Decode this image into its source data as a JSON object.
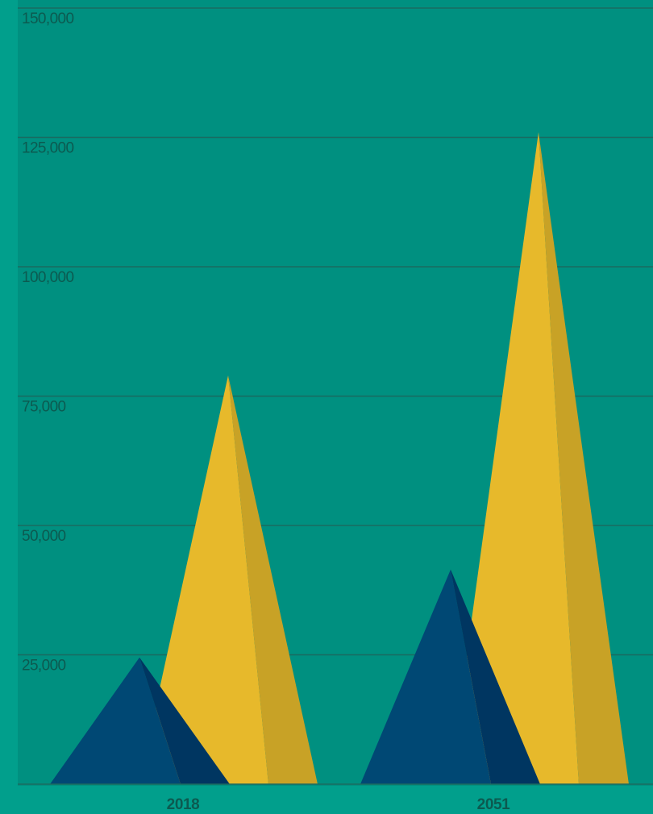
{
  "chart_data": {
    "type": "bar",
    "style": "triangle-pyramid",
    "categories": [
      "2018",
      "2051"
    ],
    "series": [
      {
        "values": [
          79000,
          126000
        ],
        "color": "#e7b92b",
        "shade": "#c8a226"
      },
      {
        "values": [
          24500,
          41500
        ],
        "color": "#004874",
        "shade": "#003661"
      }
    ],
    "ylim": [
      0,
      150000
    ],
    "yticks": [
      {
        "value": 25000,
        "label": "25,000"
      },
      {
        "value": 50000,
        "label": "50,000"
      },
      {
        "value": 75000,
        "label": "75,000"
      },
      {
        "value": 100000,
        "label": "100,000"
      },
      {
        "value": 125000,
        "label": "125,000"
      },
      {
        "value": 150000,
        "label": "150,000"
      }
    ],
    "grid": true,
    "colors": {
      "background": "#009080",
      "edge_strip": "#019f8c",
      "gridline": "#1a6a60",
      "tick_text": "#0c5a50",
      "category_text": "#0c5a50"
    }
  }
}
